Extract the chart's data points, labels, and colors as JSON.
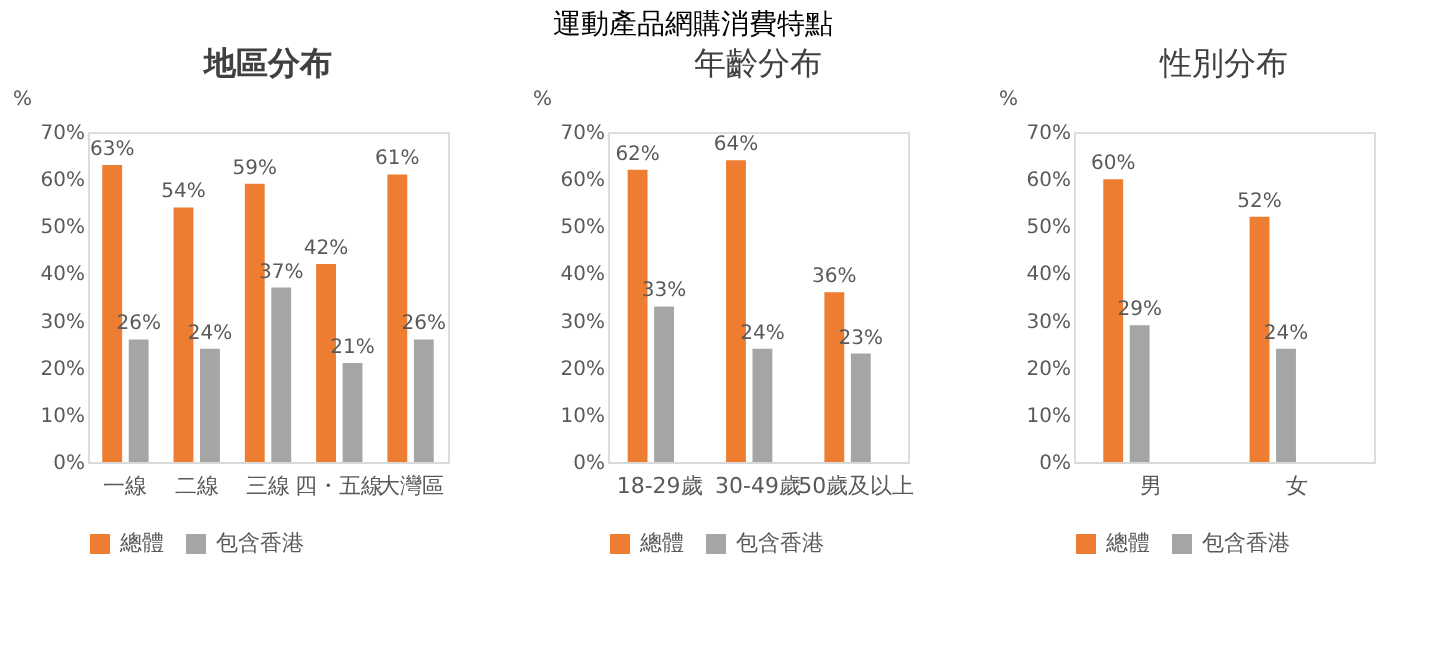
{
  "chart_data": [
    {
      "type": "bar",
      "title": "地區分布",
      "ylabel": "%",
      "annotations": [
        "運動產品網購消費特點"
      ],
      "categories": [
        "一線",
        "二線",
        "三線",
        "四・五線",
        "大灣區"
      ],
      "series": [
        {
          "name": "總體",
          "color": "#ed7d31",
          "values": [
            63,
            54,
            59,
            42,
            61
          ],
          "value_labels": [
            "63%",
            "54%",
            "59%",
            "42%",
            "61%"
          ]
        },
        {
          "name": "包含香港",
          "color": "#a5a5a5",
          "values": [
            26,
            24,
            37,
            21,
            26
          ],
          "value_labels": [
            "26%",
            "24%",
            "37%",
            "21%",
            "26%"
          ]
        }
      ],
      "ylim": [
        0,
        70
      ],
      "yticks": [
        {
          "value": 0,
          "label": "0%"
        },
        {
          "value": 10,
          "label": "10%"
        },
        {
          "value": 20,
          "label": "20%"
        },
        {
          "value": 30,
          "label": "30%"
        },
        {
          "value": 40,
          "label": "40%"
        },
        {
          "value": 50,
          "label": "50%"
        },
        {
          "value": 60,
          "label": "60%"
        },
        {
          "value": 70,
          "label": "70%"
        }
      ],
      "grid": false,
      "legend": "bottom"
    },
    {
      "type": "bar",
      "title": "年齡分布",
      "ylabel": "%",
      "categories": [
        "18-29歲",
        "30-49歲",
        "50歲及以上"
      ],
      "series": [
        {
          "name": "總體",
          "color": "#ed7d31",
          "values": [
            62,
            64,
            36
          ],
          "value_labels": [
            "62%",
            "64%",
            "36%"
          ]
        },
        {
          "name": "包含香港",
          "color": "#a5a5a5",
          "values": [
            33,
            24,
            23
          ],
          "value_labels": [
            "33%",
            "24%",
            "23%"
          ]
        }
      ],
      "ylim": [
        0,
        70
      ],
      "yticks": [
        {
          "value": 0,
          "label": "0%"
        },
        {
          "value": 10,
          "label": "10%"
        },
        {
          "value": 20,
          "label": "20%"
        },
        {
          "value": 30,
          "label": "30%"
        },
        {
          "value": 40,
          "label": "40%"
        },
        {
          "value": 50,
          "label": "50%"
        },
        {
          "value": 60,
          "label": "60%"
        },
        {
          "value": 70,
          "label": "70%"
        }
      ],
      "grid": false,
      "legend": "bottom"
    },
    {
      "type": "bar",
      "title": "性別分布",
      "ylabel": "%",
      "categories": [
        "男",
        "女"
      ],
      "series": [
        {
          "name": "總體",
          "color": "#ed7d31",
          "values": [
            60,
            52
          ],
          "value_labels": [
            "60%",
            "52%"
          ]
        },
        {
          "name": "包含香港",
          "color": "#a5a5a5",
          "values": [
            29,
            24
          ],
          "value_labels": [
            "29%",
            "24%"
          ]
        }
      ],
      "ylim": [
        0,
        70
      ],
      "yticks": [
        {
          "value": 0,
          "label": "0%"
        },
        {
          "value": 10,
          "label": "10%"
        },
        {
          "value": 20,
          "label": "20%"
        },
        {
          "value": 30,
          "label": "30%"
        },
        {
          "value": 40,
          "label": "40%"
        },
        {
          "value": 50,
          "label": "50%"
        },
        {
          "value": 60,
          "label": "60%"
        },
        {
          "value": 70,
          "label": "70%"
        }
      ],
      "grid": false,
      "legend": "bottom"
    }
  ]
}
